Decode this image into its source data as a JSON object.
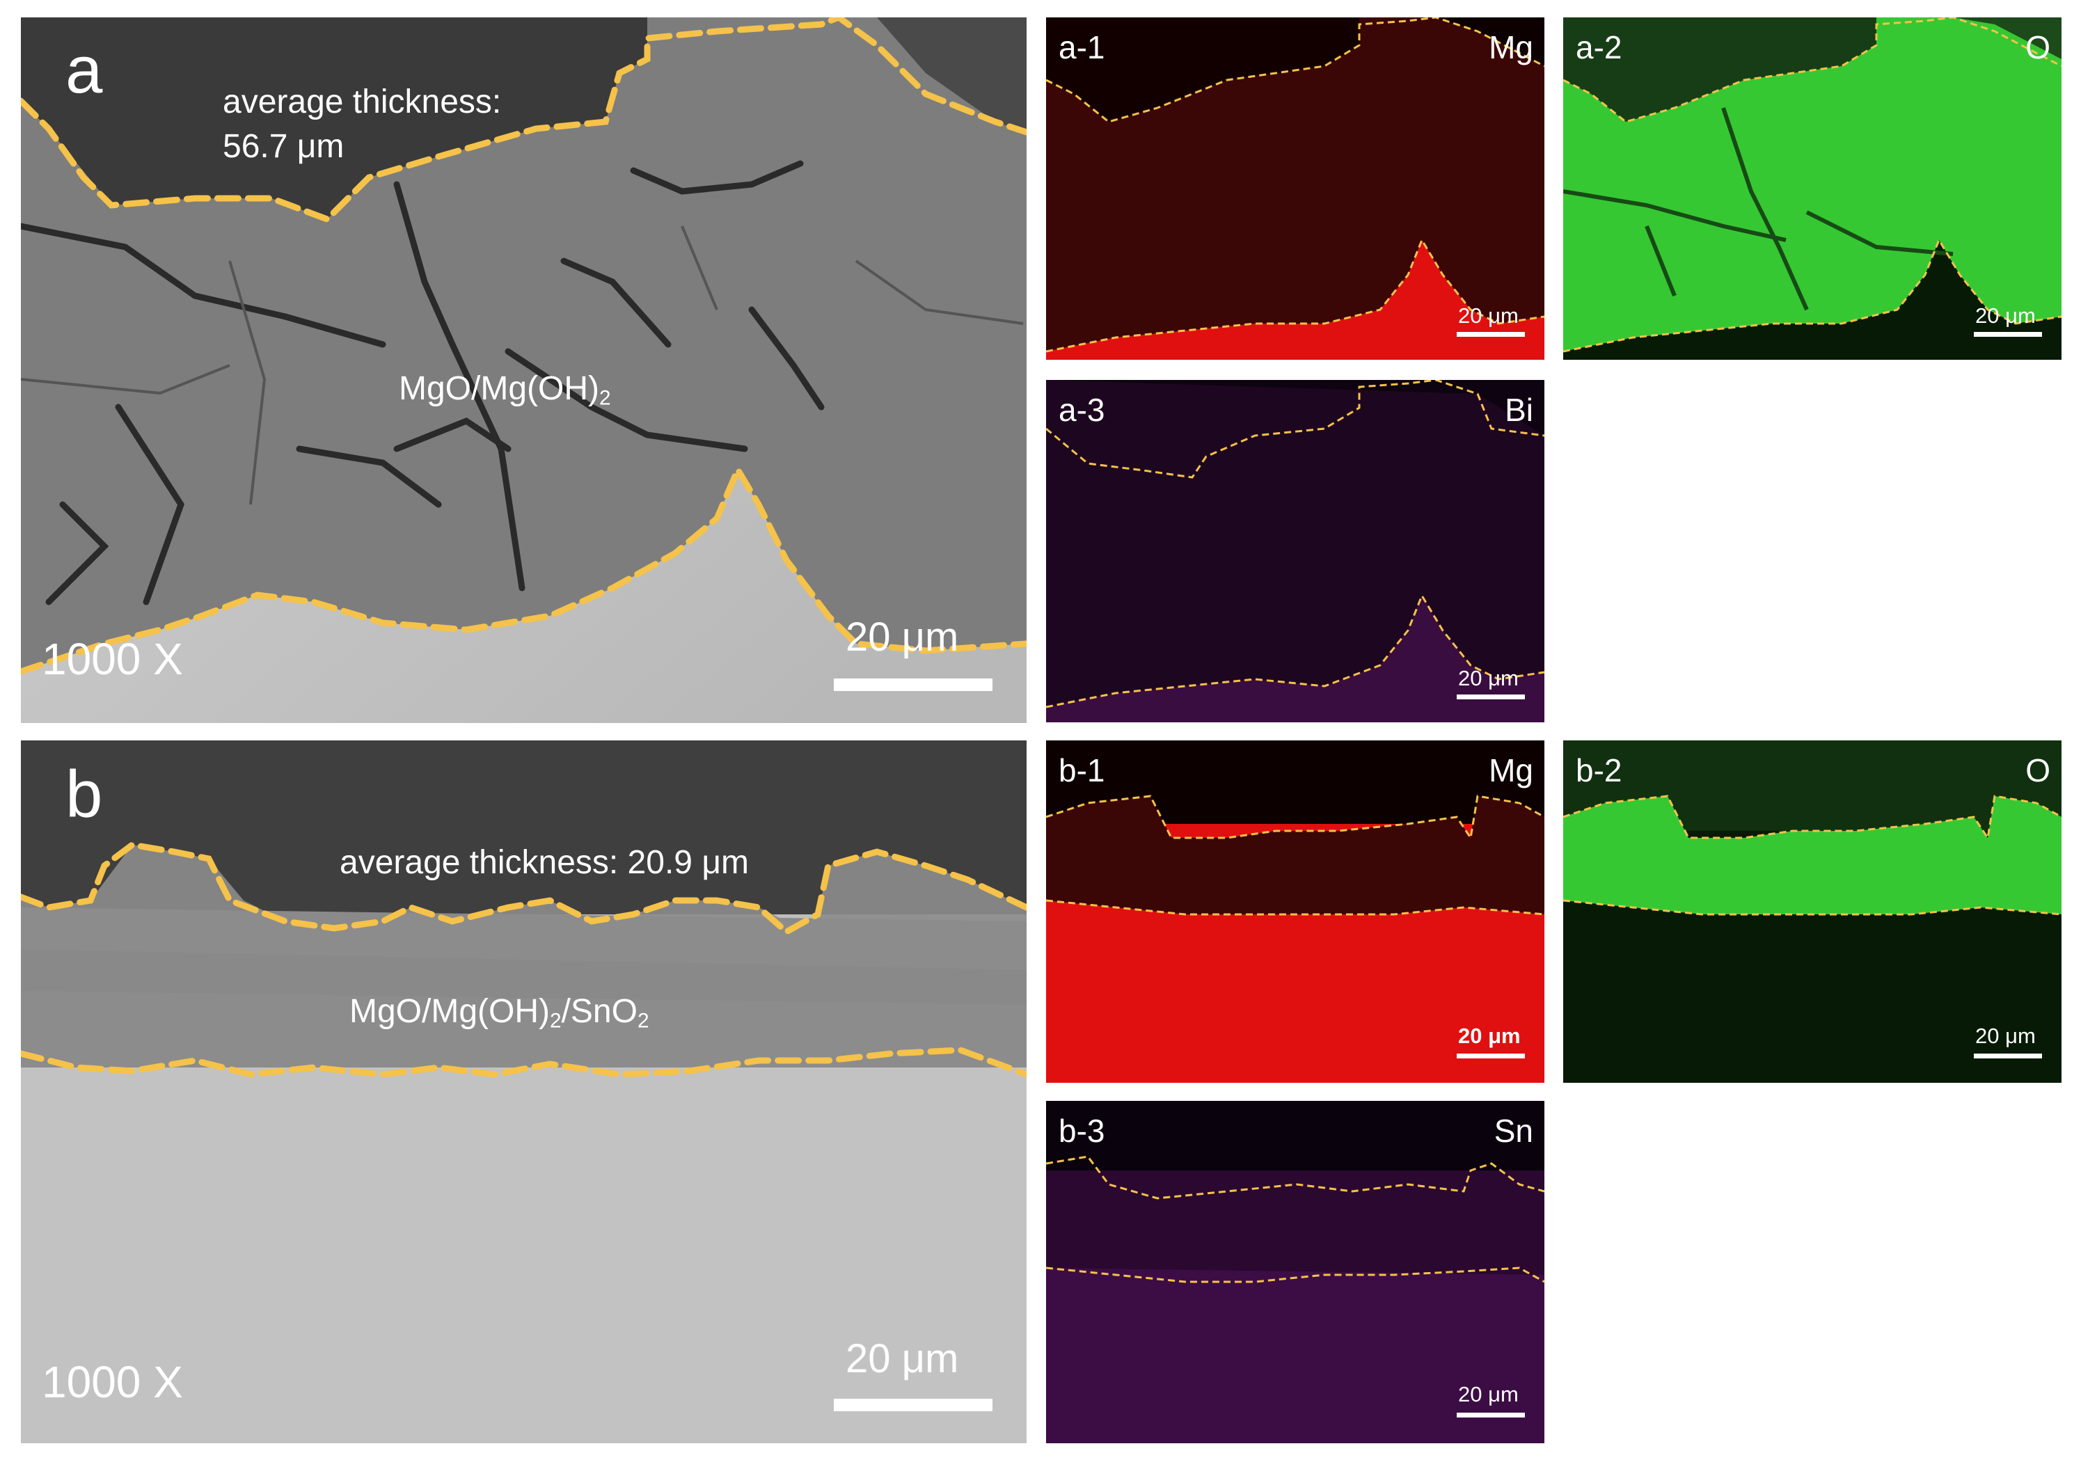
{
  "panel_a": {
    "letter": "a",
    "thickness_line1": "average thickness:",
    "thickness_line2": "56.7 μm",
    "layer_main": "MgO/Mg(OH)",
    "layer_sub": "2",
    "magnification": "1000 X",
    "scale_bar": "20 μm"
  },
  "panel_b": {
    "letter": "b",
    "thickness": "average thickness: 20.9 μm",
    "layer_part1": "MgO/Mg(OH)",
    "layer_sub1": "2",
    "layer_part2": "/SnO",
    "layer_sub2": "2",
    "magnification": "1000 X",
    "scale_bar": "20 μm"
  },
  "maps": {
    "a1": {
      "id": "a-1",
      "element": "Mg",
      "scale_bar": "20 μm",
      "color": "#e01010"
    },
    "a2": {
      "id": "a-2",
      "element": "O",
      "scale_bar": "20 μm",
      "color": "#36c832"
    },
    "a3": {
      "id": "a-3",
      "element": "Bi",
      "scale_bar": "20 μm",
      "color": "#8a1a9a"
    },
    "b1": {
      "id": "b-1",
      "element": "Mg",
      "scale_bar": "20 μm",
      "color": "#e01010"
    },
    "b2": {
      "id": "b-2",
      "element": "O",
      "scale_bar": "20 μm",
      "color": "#36c832"
    },
    "b3": {
      "id": "b-3",
      "element": "Sn",
      "scale_bar": "20 μm",
      "color": "#a020b0"
    }
  },
  "boundary_color": "#f5c24a"
}
